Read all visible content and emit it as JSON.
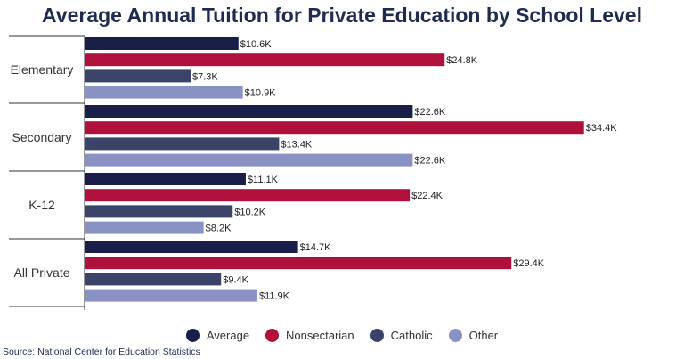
{
  "chart_data": {
    "type": "bar",
    "orientation": "horizontal",
    "title": "Average Annual Tuition for Private Education by School Level",
    "categories": [
      "Elementary",
      "Secondary",
      "K-12",
      "All Private"
    ],
    "series": [
      {
        "name": "Average",
        "color": "#1a1f4a",
        "values": [
          10.6,
          22.6,
          11.1,
          14.7
        ],
        "labels": [
          "$10.6K",
          "$22.6K",
          "$11.1K",
          "$14.7K"
        ]
      },
      {
        "name": "Nonsectarian",
        "color": "#b0103c",
        "values": [
          24.8,
          34.4,
          22.4,
          29.4
        ],
        "labels": [
          "$24.8K",
          "$34.4K",
          "$22.4K",
          "$29.4K"
        ]
      },
      {
        "name": "Catholic",
        "color": "#3b4468",
        "values": [
          7.3,
          13.4,
          10.2,
          9.4
        ],
        "labels": [
          "$7.3K",
          "$13.4K",
          "$10.2K",
          "$9.4K"
        ]
      },
      {
        "name": "Other",
        "color": "#8a92c4",
        "values": [
          10.9,
          22.6,
          8.2,
          11.9
        ],
        "labels": [
          "$10.9K",
          "$22.6K",
          "$8.2K",
          "$11.9K"
        ]
      }
    ],
    "unit": "thousand USD",
    "xlim": [
      0,
      40
    ],
    "grid": false,
    "legend_position": "bottom"
  },
  "source": "Source: National Center for Education Statistics"
}
